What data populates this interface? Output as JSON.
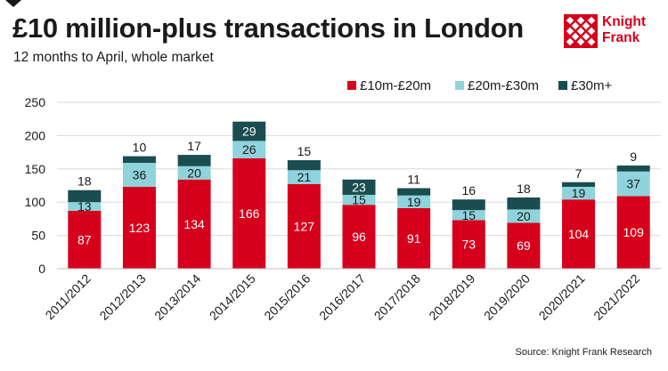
{
  "title": "£10 million-plus transactions in London",
  "subtitle": "12 months to April, whole market",
  "logo": {
    "line1": "Knight",
    "line2": "Frank"
  },
  "source": "Source: Knight Frank Research",
  "colors": {
    "series1": "#d6001c",
    "series2": "#8fd3dc",
    "series3": "#1a4d4f",
    "brand": "#d6001c"
  },
  "chart_data": {
    "type": "bar",
    "stacked": true,
    "categories": [
      "2011/2012",
      "2012/2013",
      "2013/2014",
      "2014/2015",
      "2015/2016",
      "2016/2017",
      "2017/2018",
      "2018/2019",
      "2019/2020",
      "2020/2021",
      "2021/2022"
    ],
    "series": [
      {
        "name": "£10m-£20m",
        "values": [
          87,
          123,
          134,
          166,
          127,
          96,
          91,
          73,
          69,
          104,
          109
        ]
      },
      {
        "name": "£20m-£30m",
        "values": [
          13,
          36,
          20,
          26,
          21,
          15,
          19,
          15,
          20,
          19,
          37
        ]
      },
      {
        "name": "£30m+",
        "values": [
          18,
          10,
          17,
          29,
          15,
          23,
          11,
          16,
          18,
          7,
          9
        ]
      }
    ],
    "ylim": [
      0,
      250
    ],
    "yticks": [
      0,
      50,
      100,
      150,
      200,
      250
    ],
    "grid": true,
    "legend": "top-right"
  }
}
